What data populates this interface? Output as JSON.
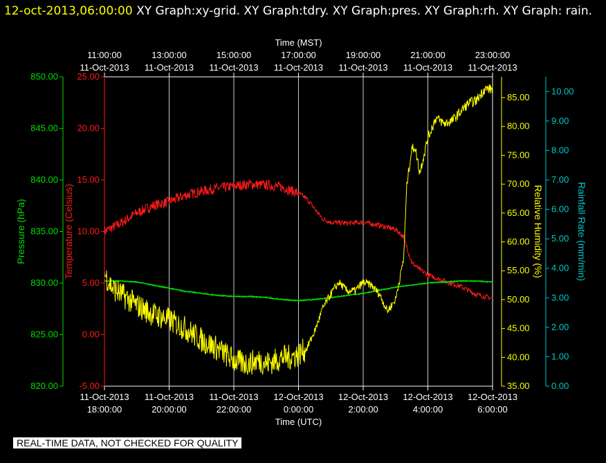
{
  "header": {
    "timestamp": "12-oct-2013,06:00:00",
    "graphs": "XY Graph:xy-grid.  XY Graph:tdry.  XY Graph:pres.  XY Graph:rh.  XY Graph: rain."
  },
  "disclaimer": "REAL-TIME DATA, NOT CHECKED FOR QUALITY",
  "colors": {
    "pressure": "#00dd00",
    "temperature": "#ff1a1a",
    "humidity": "#ffff00",
    "rain": "#00c8c8",
    "axis": "#ffffff",
    "grid": "#ffffff",
    "background": "#000000"
  },
  "chart_data": {
    "type": "line",
    "grid": true,
    "top_axis": {
      "title": "Time (MST)",
      "ticks": [
        {
          "hour": 0,
          "time": "11:00:00",
          "date": "11-Oct-2013"
        },
        {
          "hour": 2,
          "time": "13:00:00",
          "date": "11-Oct-2013"
        },
        {
          "hour": 4,
          "time": "15:00:00",
          "date": "11-Oct-2013"
        },
        {
          "hour": 6,
          "time": "17:00:00",
          "date": "11-Oct-2013"
        },
        {
          "hour": 8,
          "time": "19:00:00",
          "date": "11-Oct-2013"
        },
        {
          "hour": 10,
          "time": "21:00:00",
          "date": "11-Oct-2013"
        },
        {
          "hour": 12,
          "time": "23:00:00",
          "date": "11-Oct-2013"
        }
      ]
    },
    "bottom_axis": {
      "title": "Time (UTC)",
      "range": [
        0,
        12
      ],
      "ticks": [
        {
          "hour": 0,
          "date": "11-Oct-2013",
          "time": "18:00:00"
        },
        {
          "hour": 2,
          "date": "11-Oct-2013",
          "time": "20:00:00"
        },
        {
          "hour": 4,
          "date": "11-Oct-2013",
          "time": "22:00:00"
        },
        {
          "hour": 6,
          "date": "12-Oct-2013",
          "time": "0:00:00"
        },
        {
          "hour": 8,
          "date": "12-Oct-2013",
          "time": "2:00:00"
        },
        {
          "hour": 10,
          "date": "12-Oct-2013",
          "time": "4:00:00"
        },
        {
          "hour": 12,
          "date": "12-Oct-2013",
          "time": "6:00:00"
        }
      ]
    },
    "axes": {
      "pressure": {
        "label": "Pressure (hPa)",
        "range": [
          820,
          850
        ],
        "ticks": [
          "820.00",
          "825.00",
          "830.00",
          "835.00",
          "840.00",
          "845.00",
          "850.00"
        ]
      },
      "temperature": {
        "label": "Temperature (Celsius)",
        "range": [
          -5,
          25
        ],
        "ticks": [
          "-5.00",
          "0.00",
          "5.00",
          "10.00",
          "15.00",
          "20.00",
          "25.00"
        ]
      },
      "humidity": {
        "label": "Relative Humidity (%)",
        "range": [
          35,
          88.6
        ],
        "ticks": [
          "35.00",
          "40.00",
          "45.00",
          "50.00",
          "55.00",
          "60.00",
          "65.00",
          "70.00",
          "75.00",
          "80.00",
          "85.00"
        ]
      },
      "rain": {
        "label": "Rainfall Rate (mm/min)",
        "range": [
          0,
          10.5
        ],
        "ticks": [
          "0.00",
          "1.00",
          "2.00",
          "3.00",
          "4.00",
          "5.00",
          "6.00",
          "7.00",
          "8.00",
          "9.00",
          "10.00"
        ]
      }
    },
    "series": [
      {
        "name": "tdry",
        "axis": "temperature",
        "x": [
          0,
          0.5,
          1,
          1.5,
          2,
          2.5,
          3,
          3.5,
          4,
          4.5,
          5,
          5.5,
          6,
          6.25,
          6.5,
          6.75,
          7,
          7.5,
          8,
          8.5,
          9,
          9.25,
          9.5,
          9.75,
          10,
          10.5,
          11,
          11.5,
          12
        ],
        "y": [
          10.0,
          10.8,
          11.8,
          12.5,
          12.9,
          13.5,
          13.9,
          14.2,
          14.4,
          14.6,
          14.5,
          14.3,
          13.7,
          13.2,
          12.2,
          11.2,
          10.9,
          10.8,
          10.9,
          10.6,
          10.2,
          9.5,
          7.0,
          6.3,
          5.8,
          5.2,
          4.7,
          3.9,
          3.5
        ]
      },
      {
        "name": "pres",
        "axis": "pressure",
        "x": [
          0,
          0.5,
          1,
          1.5,
          2,
          2.5,
          3,
          3.5,
          4,
          4.5,
          5,
          5.5,
          6,
          6.5,
          7,
          7.5,
          8,
          8.5,
          9,
          9.5,
          10,
          10.5,
          11,
          11.5,
          12
        ],
        "y": [
          830.2,
          830.2,
          830.1,
          829.8,
          829.5,
          829.2,
          829.0,
          828.8,
          828.7,
          828.7,
          828.6,
          828.4,
          828.3,
          828.4,
          828.6,
          828.8,
          829.0,
          829.3,
          829.6,
          829.8,
          830.0,
          830.1,
          830.2,
          830.2,
          830.1
        ]
      },
      {
        "name": "rh",
        "axis": "humidity",
        "x": [
          0,
          0.25,
          0.5,
          0.75,
          1,
          1.5,
          2,
          2.5,
          3,
          3.5,
          4,
          4.25,
          4.5,
          4.75,
          5,
          5.25,
          5.5,
          5.75,
          6,
          6.25,
          6.5,
          6.75,
          7,
          7.25,
          7.5,
          7.75,
          8,
          8.25,
          8.5,
          8.75,
          9,
          9.25,
          9.35,
          9.5,
          9.6,
          9.75,
          10,
          10.25,
          10.5,
          10.75,
          11,
          11.25,
          11.5,
          11.75,
          12
        ],
        "y": [
          54.5,
          52.0,
          51.0,
          50.0,
          49.0,
          47.5,
          46.5,
          45.0,
          43.0,
          41.5,
          39.5,
          39.0,
          39.0,
          39.5,
          39.0,
          39.3,
          40.0,
          40.0,
          40.5,
          41.5,
          44.5,
          48.5,
          51.0,
          53.0,
          51.5,
          51.5,
          53.0,
          52.5,
          51.0,
          48.0,
          50.0,
          57.0,
          70.0,
          76.0,
          76.5,
          72.0,
          78.0,
          81.5,
          80.5,
          81.0,
          82.5,
          84.0,
          84.5,
          86.5,
          86.5
        ]
      },
      {
        "name": "rain",
        "axis": "rain",
        "x": [],
        "y": []
      }
    ]
  }
}
